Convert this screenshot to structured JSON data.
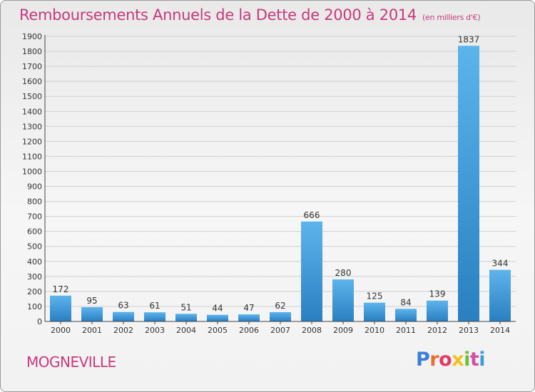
{
  "header": {
    "title": "Remboursements Annuels de la Dette de 2000 à 2014",
    "unit": "(en milliers d'€)"
  },
  "footer": {
    "commune": "MOGNEVILLE",
    "logo_letters": [
      "P",
      "r",
      "o",
      "x",
      "i",
      "t",
      "i"
    ],
    "logo_colors": [
      "#3a7fd5",
      "#e8702a",
      "#e23b63",
      "#f2c01e",
      "#6bbf3b",
      "#d64da6",
      "#3a9fd8"
    ]
  },
  "colors": {
    "bar_light": "#5db4ec",
    "bar_dark": "#2a7fc0",
    "grid": "#cfcfcf",
    "axis": "#444444"
  },
  "chart_data": {
    "type": "bar",
    "categories": [
      "2000",
      "2001",
      "2002",
      "2003",
      "2004",
      "2005",
      "2006",
      "2007",
      "2008",
      "2009",
      "2010",
      "2011",
      "2012",
      "2013",
      "2014"
    ],
    "values": [
      172,
      95,
      63,
      61,
      51,
      44,
      47,
      62,
      666,
      280,
      125,
      84,
      139,
      1837,
      344
    ],
    "ylim": [
      0,
      1900
    ],
    "yticks": [
      0,
      100,
      200,
      300,
      400,
      500,
      600,
      700,
      800,
      900,
      1000,
      1100,
      1200,
      1300,
      1400,
      1500,
      1600,
      1700,
      1800,
      1900
    ],
    "grid": true
  }
}
